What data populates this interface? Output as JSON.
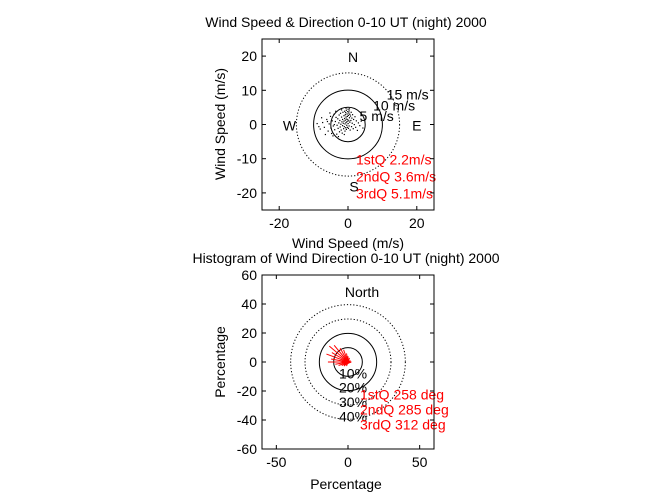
{
  "chart_data": [
    {
      "type": "scatter",
      "title": "Wind Speed & Direction 0-10 UT (night) 2000",
      "xlabel": "Wind Speed (m/s)",
      "ylabel": "Wind Speed (m/s)",
      "xlim": [
        -25,
        25
      ],
      "ylim": [
        -25,
        25
      ],
      "xticks": [
        -20,
        0,
        20
      ],
      "yticks": [
        20,
        10,
        0,
        -10,
        -20
      ],
      "grid": false,
      "rings": [
        {
          "radius": 5,
          "label": "5 m/s",
          "style": "solid"
        },
        {
          "radius": 10,
          "label": "10 m/s",
          "style": "solid"
        },
        {
          "radius": 15,
          "label": "15 m/s",
          "style": "dotted"
        }
      ],
      "compass": {
        "n": "N",
        "s": "S",
        "e": "E",
        "w": "W"
      },
      "stats": [
        "1stQ 2.2m/s",
        "2ndQ 3.6m/s",
        "3rdQ 5.1m/s"
      ],
      "stats_color": "#ff0000",
      "point_color": "#000000",
      "points": [
        [
          -7.4,
          0.6
        ],
        [
          -6.9,
          -0.8
        ],
        [
          -6.2,
          1.5
        ],
        [
          -5.8,
          -1.9
        ],
        [
          -5.5,
          0.2
        ],
        [
          -5.1,
          2.4
        ],
        [
          -4.8,
          -2.6
        ],
        [
          -4.6,
          1.1
        ],
        [
          -4.3,
          -0.4
        ],
        [
          -4.1,
          3.0
        ],
        [
          -3.9,
          -1.5
        ],
        [
          -3.7,
          0.9
        ],
        [
          -3.5,
          2.1
        ],
        [
          -3.3,
          -2.8
        ],
        [
          -3.2,
          -0.2
        ],
        [
          -3.0,
          1.7
        ],
        [
          -2.9,
          -1.1
        ],
        [
          -2.7,
          0.5
        ],
        [
          -2.6,
          2.8
        ],
        [
          -2.5,
          -2.1
        ],
        [
          -2.4,
          1.2
        ],
        [
          -2.3,
          -0.7
        ],
        [
          -2.2,
          3.3
        ],
        [
          -2.1,
          0.1
        ],
        [
          -2.0,
          -1.6
        ],
        [
          -1.9,
          2.2
        ],
        [
          -1.8,
          0.8
        ],
        [
          -1.7,
          -2.5
        ],
        [
          -1.6,
          1.5
        ],
        [
          -1.6,
          -0.3
        ],
        [
          -1.5,
          3.6
        ],
        [
          -1.4,
          0.4
        ],
        [
          -1.3,
          -1.2
        ],
        [
          -1.2,
          2.6
        ],
        [
          -1.2,
          1.0
        ],
        [
          -1.1,
          -0.6
        ],
        [
          -1.0,
          3.9
        ],
        [
          -1.0,
          1.8
        ],
        [
          -0.9,
          -1.9
        ],
        [
          -0.9,
          0.2
        ],
        [
          -0.8,
          2.9
        ],
        [
          -0.8,
          1.3
        ],
        [
          -0.7,
          -0.9
        ],
        [
          -0.7,
          3.5
        ],
        [
          -0.6,
          0.6
        ],
        [
          -0.6,
          2.2
        ],
        [
          -0.5,
          -1.4
        ],
        [
          -0.5,
          4.2
        ],
        [
          -0.4,
          1.6
        ],
        [
          -0.4,
          -0.2
        ],
        [
          -0.3,
          3.1
        ],
        [
          -0.3,
          0.9
        ],
        [
          -0.2,
          2.4
        ],
        [
          -0.2,
          -0.8
        ],
        [
          -0.1,
          3.8
        ],
        [
          -0.1,
          1.4
        ],
        [
          0.0,
          4.5
        ],
        [
          0.0,
          0.3
        ],
        [
          0.1,
          2.7
        ],
        [
          0.1,
          -1.1
        ],
        [
          0.2,
          3.4
        ],
        [
          0.2,
          1.1
        ],
        [
          0.3,
          4.0
        ],
        [
          0.3,
          -0.4
        ],
        [
          0.4,
          2.0
        ],
        [
          0.5,
          3.0
        ],
        [
          0.5,
          0.7
        ],
        [
          0.6,
          -1.6
        ],
        [
          0.7,
          2.5
        ],
        [
          0.8,
          1.2
        ],
        [
          0.9,
          3.6
        ],
        [
          1.0,
          -0.6
        ],
        [
          1.1,
          1.9
        ],
        [
          1.2,
          0.4
        ],
        [
          1.3,
          2.9
        ],
        [
          1.5,
          -1.2
        ],
        [
          1.6,
          1.5
        ],
        [
          1.8,
          0.0
        ],
        [
          2.0,
          2.3
        ],
        [
          2.2,
          -0.8
        ],
        [
          2.4,
          1.1
        ],
        [
          2.7,
          -1.7
        ],
        [
          3.0,
          0.5
        ],
        [
          3.4,
          -0.3
        ],
        [
          3.8,
          1.0
        ],
        [
          4.3,
          -1.0
        ],
        [
          -8.1,
          -1.3
        ],
        [
          -7.7,
          2.0
        ],
        [
          -6.6,
          -2.9
        ],
        [
          -5.3,
          3.4
        ],
        [
          -4.4,
          -3.3
        ],
        [
          -3.6,
          3.9
        ],
        [
          -2.8,
          -3.5
        ],
        [
          -1.9,
          4.3
        ],
        [
          -1.1,
          -2.9
        ],
        [
          -0.6,
          4.8
        ],
        [
          0.4,
          4.6
        ],
        [
          -9.0,
          0.3
        ],
        [
          -8.5,
          -0.6
        ],
        [
          -6.0,
          0.9
        ],
        [
          -5.0,
          -1.0
        ],
        [
          -4.0,
          0.0
        ]
      ]
    },
    {
      "type": "rose",
      "title": "Histogram of Wind Direction 0-10 UT (night) 2000",
      "xlabel": "Percentage",
      "ylabel": "Percentage",
      "xlim": [
        -60,
        60
      ],
      "ylim": [
        -60,
        60
      ],
      "xticks": [
        -50,
        0,
        50
      ],
      "yticks": [
        60,
        40,
        20,
        0,
        -20,
        -40,
        -60
      ],
      "grid": false,
      "rings": [
        {
          "radius": 10,
          "label": "10%",
          "style": "solid"
        },
        {
          "radius": 20,
          "label": "20%",
          "style": "solid"
        },
        {
          "radius": 30,
          "label": "30%",
          "style": "dotted"
        },
        {
          "radius": 40,
          "label": "40%",
          "style": "dotted"
        }
      ],
      "north_label": "North",
      "stats": [
        "1stQ 258 deg",
        "2ndQ 285 deg",
        "3rdQ 312 deg"
      ],
      "stats_color": "#ff0000",
      "arrow_color": "#ff0000",
      "sectors": [
        {
          "direction_deg": 240,
          "percent": 5
        },
        {
          "direction_deg": 250,
          "percent": 7
        },
        {
          "direction_deg": 260,
          "percent": 9
        },
        {
          "direction_deg": 270,
          "percent": 14
        },
        {
          "direction_deg": 280,
          "percent": 12
        },
        {
          "direction_deg": 290,
          "percent": 16
        },
        {
          "direction_deg": 300,
          "percent": 13
        },
        {
          "direction_deg": 310,
          "percent": 17
        },
        {
          "direction_deg": 320,
          "percent": 15
        },
        {
          "direction_deg": 330,
          "percent": 11
        },
        {
          "direction_deg": 340,
          "percent": 9
        },
        {
          "direction_deg": 350,
          "percent": 6
        },
        {
          "direction_deg": 0,
          "percent": 4
        },
        {
          "direction_deg": 20,
          "percent": 3
        },
        {
          "direction_deg": 60,
          "percent": 2
        },
        {
          "direction_deg": 100,
          "percent": 2
        },
        {
          "direction_deg": 200,
          "percent": 3
        },
        {
          "direction_deg": 225,
          "percent": 4
        }
      ]
    }
  ]
}
